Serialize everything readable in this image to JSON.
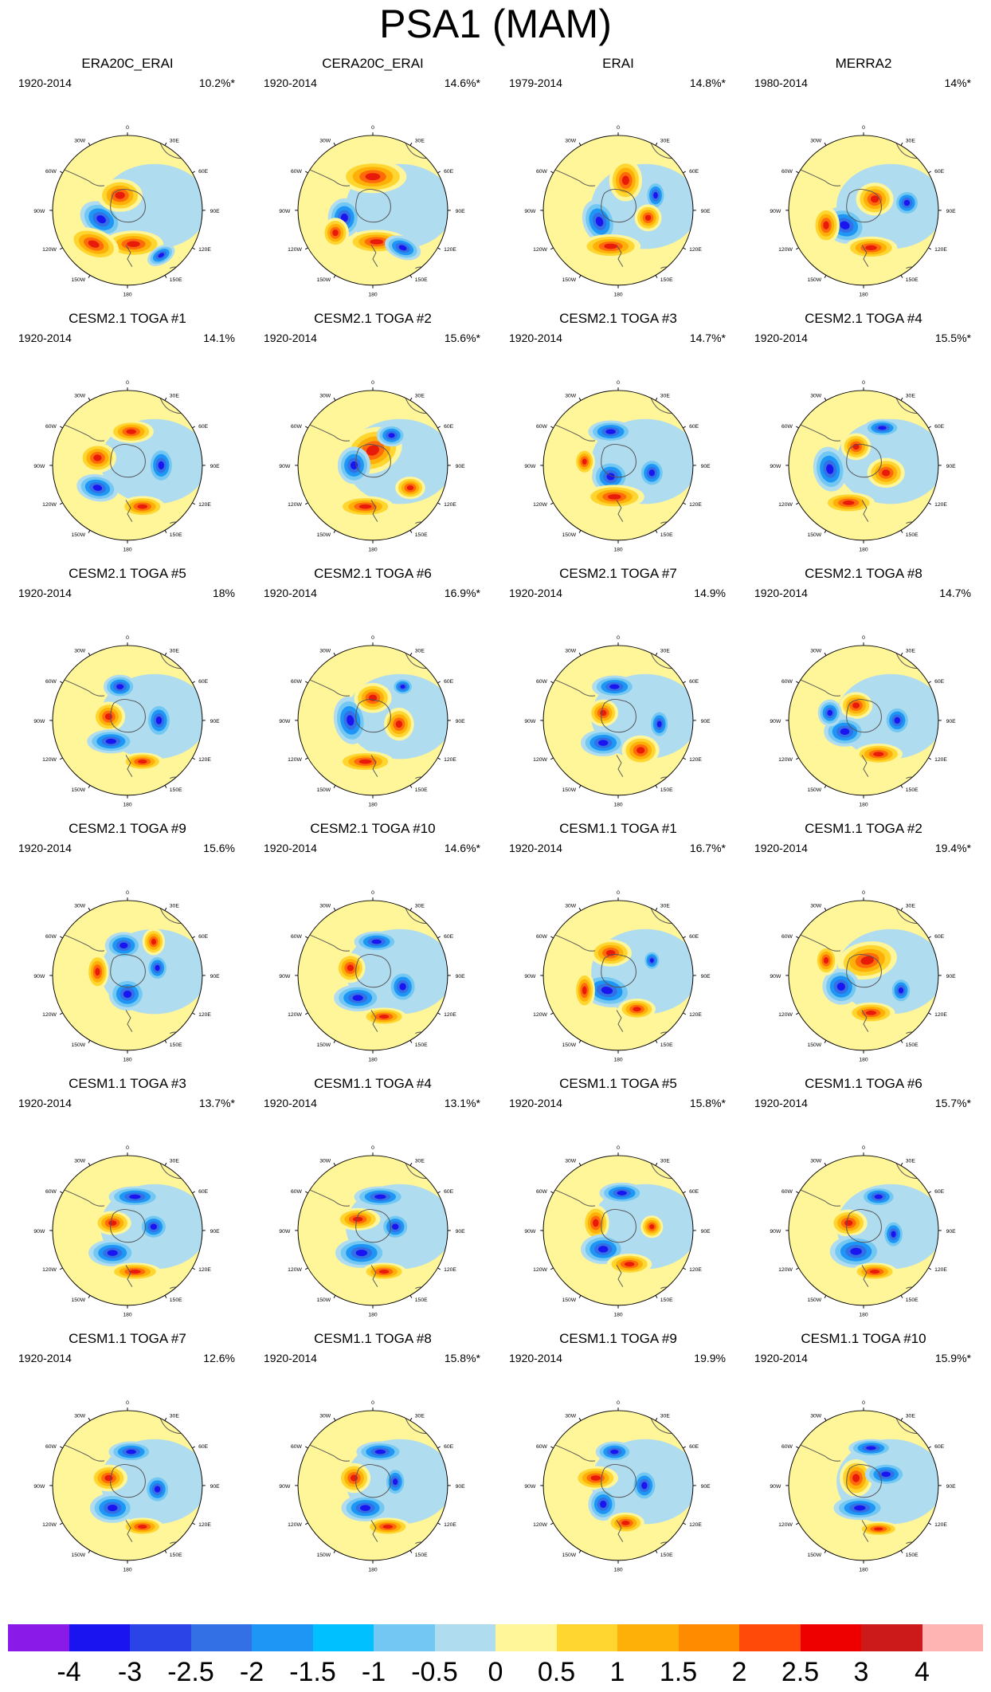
{
  "title": "PSA1 (MAM)",
  "map_tick_labels": {
    "top": "0",
    "bottom": "180",
    "left_upper": "60W",
    "left_mid": "90W",
    "left_lower": "120W",
    "right_upper": "60E",
    "right_mid": "90E",
    "right_lower": "120E",
    "top_left": "30W",
    "top_right": "30E",
    "bottom_left": "150W",
    "bottom_right": "150E"
  },
  "panels": [
    {
      "title": "ERA20C_ERAI",
      "period": "1920-2014",
      "variance": "10.2%*"
    },
    {
      "title": "CERA20C_ERAI",
      "period": "1920-2014",
      "variance": "14.6%*"
    },
    {
      "title": "ERAI",
      "period": "1979-2014",
      "variance": "14.8%*"
    },
    {
      "title": "MERRA2",
      "period": "1980-2014",
      "variance": "14%*"
    },
    {
      "title": "CESM2.1 TOGA #1",
      "period": "1920-2014",
      "variance": "14.1%"
    },
    {
      "title": "CESM2.1 TOGA #2",
      "period": "1920-2014",
      "variance": "15.6%*"
    },
    {
      "title": "CESM2.1 TOGA #3",
      "period": "1920-2014",
      "variance": "14.7%*"
    },
    {
      "title": "CESM2.1 TOGA #4",
      "period": "1920-2014",
      "variance": "15.5%*"
    },
    {
      "title": "CESM2.1 TOGA #5",
      "period": "1920-2014",
      "variance": "18%"
    },
    {
      "title": "CESM2.1 TOGA #6",
      "period": "1920-2014",
      "variance": "16.9%*"
    },
    {
      "title": "CESM2.1 TOGA #7",
      "period": "1920-2014",
      "variance": "14.9%"
    },
    {
      "title": "CESM2.1 TOGA #8",
      "period": "1920-2014",
      "variance": "14.7%"
    },
    {
      "title": "CESM2.1 TOGA #9",
      "period": "1920-2014",
      "variance": "15.6%"
    },
    {
      "title": "CESM2.1 TOGA #10",
      "period": "1920-2014",
      "variance": "14.6%*"
    },
    {
      "title": "CESM1.1 TOGA #1",
      "period": "1920-2014",
      "variance": "16.7%*"
    },
    {
      "title": "CESM1.1 TOGA #2",
      "period": "1920-2014",
      "variance": "19.4%*"
    },
    {
      "title": "CESM1.1 TOGA #3",
      "period": "1920-2014",
      "variance": "13.7%*"
    },
    {
      "title": "CESM1.1 TOGA #4",
      "period": "1920-2014",
      "variance": "13.1%*"
    },
    {
      "title": "CESM1.1 TOGA #5",
      "period": "1920-2014",
      "variance": "15.8%*"
    },
    {
      "title": "CESM1.1 TOGA #6",
      "period": "1920-2014",
      "variance": "15.7%*"
    },
    {
      "title": "CESM1.1 TOGA #7",
      "period": "1920-2014",
      "variance": "12.6%"
    },
    {
      "title": "CESM1.1 TOGA #8",
      "period": "1920-2014",
      "variance": "15.8%*"
    },
    {
      "title": "CESM1.1 TOGA #9",
      "period": "1920-2014",
      "variance": "19.9%"
    },
    {
      "title": "CESM1.1 TOGA #10",
      "period": "1920-2014",
      "variance": "15.9%*"
    }
  ],
  "colorbar": {
    "colors": [
      "#8a1ae8",
      "#1a14f0",
      "#2a44e8",
      "#3370e6",
      "#1e96f5",
      "#00c0ff",
      "#72c8f2",
      "#b0dcf0",
      "#fff599",
      "#ffd630",
      "#ffb008",
      "#ff8c00",
      "#ff4a0a",
      "#ee0000",
      "#cc1a1a",
      "#ffb4b4"
    ],
    "labels": [
      "-4",
      "-3",
      "-2.5",
      "-2",
      "-1.5",
      "-1",
      "-0.5",
      "0",
      "0.5",
      "1",
      "1.5",
      "2",
      "2.5",
      "3",
      "4"
    ]
  },
  "colors": {
    "positive_strong": "#e81a0a",
    "positive": "#ffb008",
    "neutral_pos": "#fff599",
    "neutral_neg": "#b0dcf0",
    "negative": "#3370e6",
    "negative_strong": "#1a14f0",
    "coastline": "#555555"
  }
}
